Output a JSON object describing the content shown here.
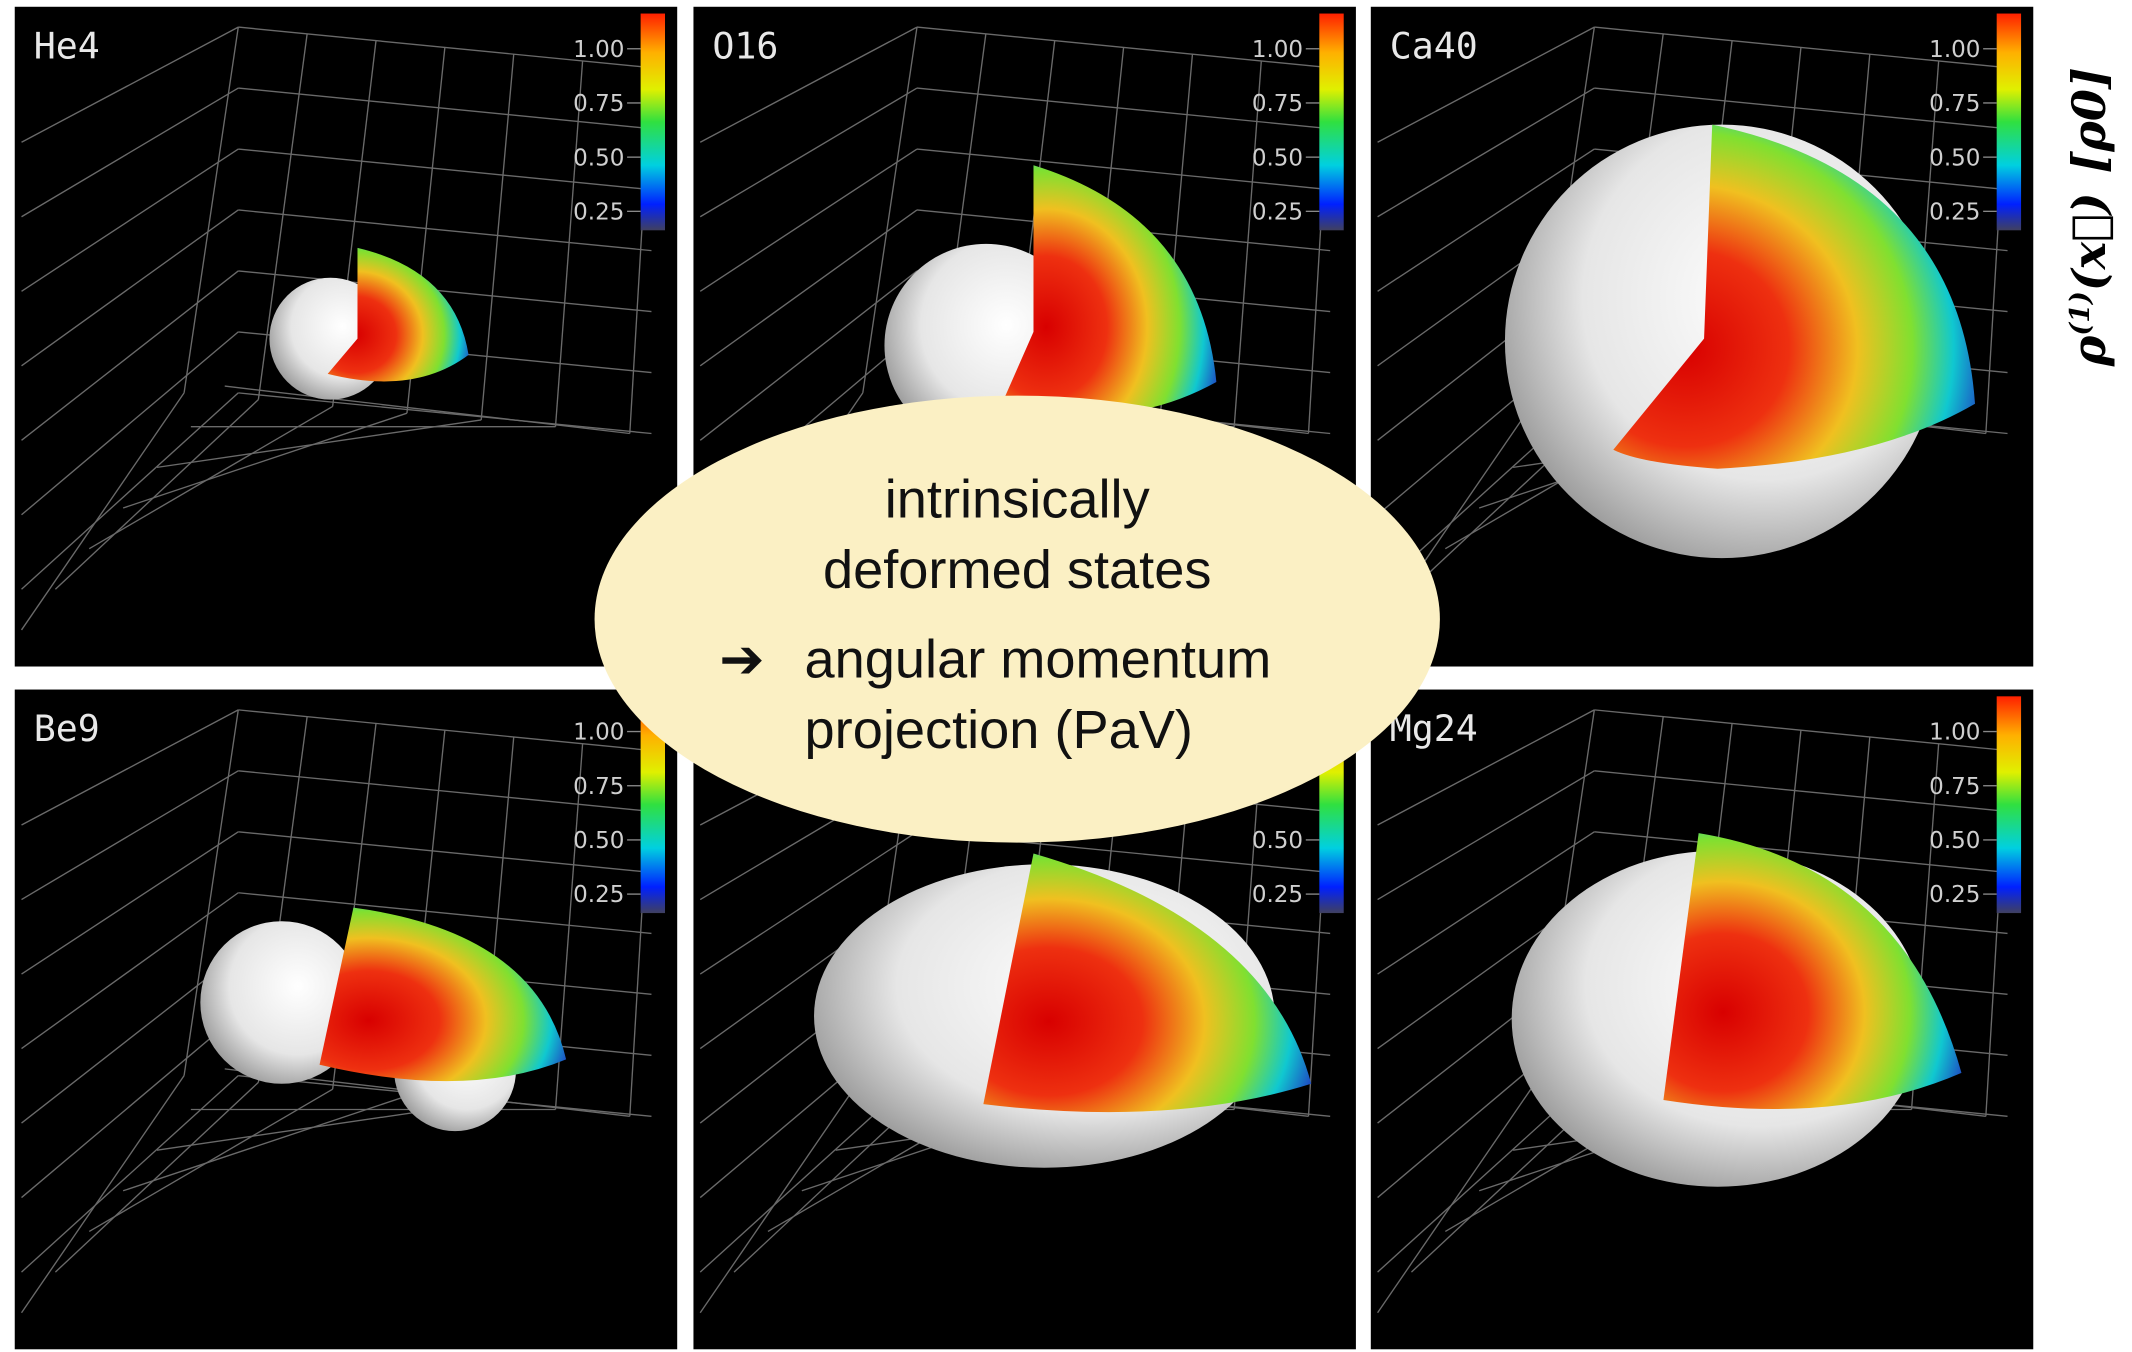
{
  "panels": [
    {
      "label": "He4",
      "colorbar_ticks": [
        "1.00",
        "0.75",
        "0.50",
        "0.25"
      ]
    },
    {
      "label": "O16",
      "colorbar_ticks": [
        "1.00",
        "0.75",
        "0.50",
        "0.25"
      ]
    },
    {
      "label": "Ca40",
      "colorbar_ticks": [
        "1.00",
        "0.75",
        "0.50",
        "0.25"
      ]
    },
    {
      "label": "Be9",
      "colorbar_ticks": [
        "1.00",
        "0.75",
        "0.50",
        "0.25"
      ]
    },
    {
      "colorbar_ticks": [
        "0.50",
        "0.25"
      ]
    },
    {
      "label": "Mg24",
      "colorbar_ticks": [
        "1.00",
        "0.75",
        "0.50",
        "0.25"
      ]
    }
  ],
  "overlay": {
    "lines": [
      "intrinsically",
      "deformed states",
      "angular momentum",
      "projection (PaV)"
    ],
    "arrow": "➔"
  },
  "colorbar_label": {
    "symbol": "ρ",
    "superscript": "(1)",
    "argument": "(x⃗)",
    "unit": "[ρ0]"
  }
}
